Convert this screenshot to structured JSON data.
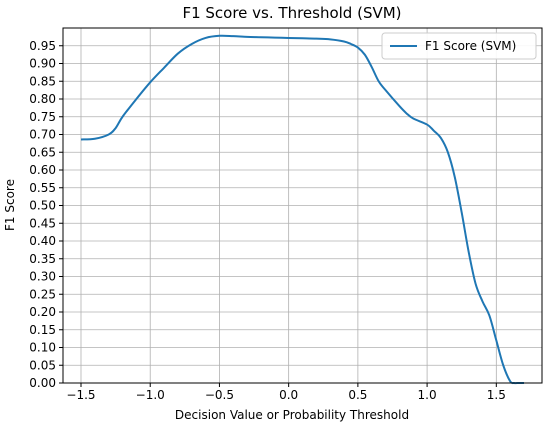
{
  "chart_data": {
    "type": "line",
    "title": "F1 Score vs. Threshold (SVM)",
    "xlabel": "Decision Value or Probability Threshold",
    "ylabel": "F1 Score",
    "xlim": [
      -1.63,
      1.83
    ],
    "ylim": [
      0.0,
      1.0
    ],
    "grid": true,
    "legend_position": "top-right",
    "x_ticks": [
      -1.5,
      -1.0,
      -0.5,
      0.0,
      0.5,
      1.0,
      1.5
    ],
    "x_tick_labels": [
      "−1.5",
      "−1.0",
      "−0.5",
      "0.0",
      "0.5",
      "1.0",
      "1.5"
    ],
    "y_ticks": [
      0.0,
      0.05,
      0.1,
      0.15,
      0.2,
      0.25,
      0.3,
      0.35,
      0.4,
      0.45,
      0.5,
      0.55,
      0.6,
      0.65,
      0.7,
      0.75,
      0.8,
      0.85,
      0.9,
      0.95
    ],
    "y_tick_labels": [
      "0.00",
      "0.05",
      "0.10",
      "0.15",
      "0.20",
      "0.25",
      "0.30",
      "0.35",
      "0.40",
      "0.45",
      "0.50",
      "0.55",
      "0.60",
      "0.65",
      "0.70",
      "0.75",
      "0.80",
      "0.85",
      "0.90",
      "0.95"
    ],
    "series": [
      {
        "name": "F1 Score (SVM)",
        "color": "#1f77b4",
        "x": [
          -1.5,
          -1.4,
          -1.3,
          -1.25,
          -1.2,
          -1.1,
          -1.0,
          -0.9,
          -0.8,
          -0.7,
          -0.6,
          -0.5,
          -0.4,
          -0.3,
          -0.2,
          -0.1,
          0.0,
          0.1,
          0.2,
          0.3,
          0.4,
          0.45,
          0.5,
          0.55,
          0.6,
          0.65,
          0.7,
          0.8,
          0.85,
          0.9,
          1.0,
          1.05,
          1.1,
          1.15,
          1.2,
          1.25,
          1.3,
          1.35,
          1.4,
          1.45,
          1.5,
          1.55,
          1.6,
          1.63,
          1.65,
          1.7
        ],
        "y": [
          0.686,
          0.688,
          0.7,
          0.718,
          0.75,
          0.8,
          0.847,
          0.888,
          0.928,
          0.955,
          0.972,
          0.978,
          0.977,
          0.975,
          0.974,
          0.973,
          0.972,
          0.971,
          0.97,
          0.968,
          0.962,
          0.955,
          0.945,
          0.925,
          0.89,
          0.85,
          0.825,
          0.78,
          0.76,
          0.745,
          0.728,
          0.71,
          0.69,
          0.65,
          0.58,
          0.48,
          0.37,
          0.28,
          0.23,
          0.19,
          0.12,
          0.05,
          0.005,
          0.0,
          0.0,
          0.0
        ]
      }
    ]
  }
}
